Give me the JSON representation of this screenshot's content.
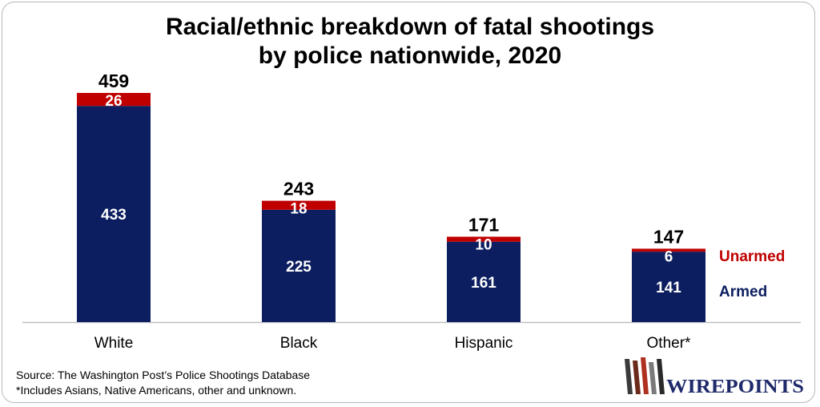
{
  "chart_data": {
    "type": "bar",
    "stacked": true,
    "title": "Racial/ethnic breakdown of fatal shootings by police nationwide, 2020",
    "title_lines": [
      "Racial/ethnic breakdown of fatal shootings",
      "by police nationwide, 2020"
    ],
    "categories": [
      "White",
      "Black",
      "Hispanic",
      "Other*"
    ],
    "series": [
      {
        "name": "Armed",
        "values": [
          433,
          225,
          161,
          141
        ],
        "color": "#0c1e60"
      },
      {
        "name": "Unarmed",
        "values": [
          26,
          18,
          10,
          6
        ],
        "color": "#c00000"
      }
    ],
    "totals": [
      459,
      243,
      171,
      147
    ],
    "ylim": [
      0,
      459
    ],
    "xlabel": "",
    "ylabel": "",
    "grid": false,
    "legend_position": "right"
  },
  "footnotes": {
    "source": "Source: The Washington Post’s Police Shootings Database",
    "note": "*Includes Asians, Native Americans, other and unknown."
  },
  "logo": {
    "text": "WIREPOINTS"
  }
}
